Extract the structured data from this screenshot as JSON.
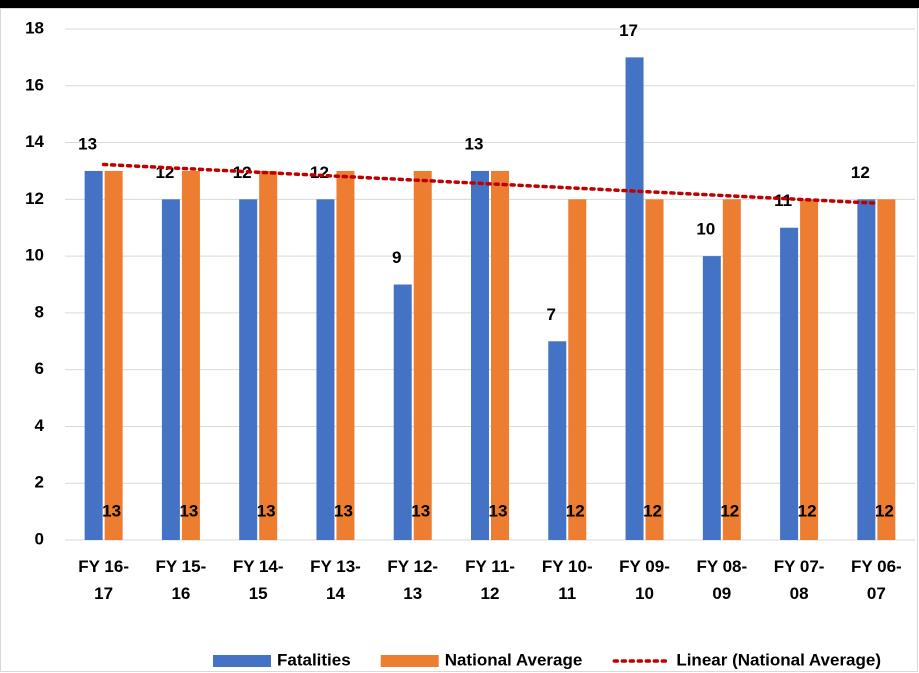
{
  "chart_data": {
    "type": "bar",
    "categories": [
      "FY 16-17",
      "FY 15-16",
      "FY 14-15",
      "FY 13-14",
      "FY 12-13",
      "FY 11-12",
      "FY 10-11",
      "FY 09-10",
      "FY 08-09",
      "FY 07-08",
      "FY 06-07"
    ],
    "series": [
      {
        "name": "Fatalities",
        "color": "#4472c4",
        "values": [
          13,
          12,
          12,
          12,
          9,
          13,
          7,
          17,
          10,
          11,
          12
        ]
      },
      {
        "name": "National Average",
        "color": "#ed7d31",
        "values": [
          13,
          13,
          13,
          13,
          13,
          13,
          12,
          12,
          12,
          12,
          12
        ]
      }
    ],
    "trendline": {
      "name": "Linear (National Average)",
      "color": "#c00000",
      "of": "National Average",
      "kind": "linear"
    },
    "ylim": [
      0,
      18
    ],
    "yticks": [
      0,
      2,
      4,
      6,
      8,
      10,
      12,
      14,
      16,
      18
    ],
    "grid": true,
    "legend": "bottom"
  }
}
